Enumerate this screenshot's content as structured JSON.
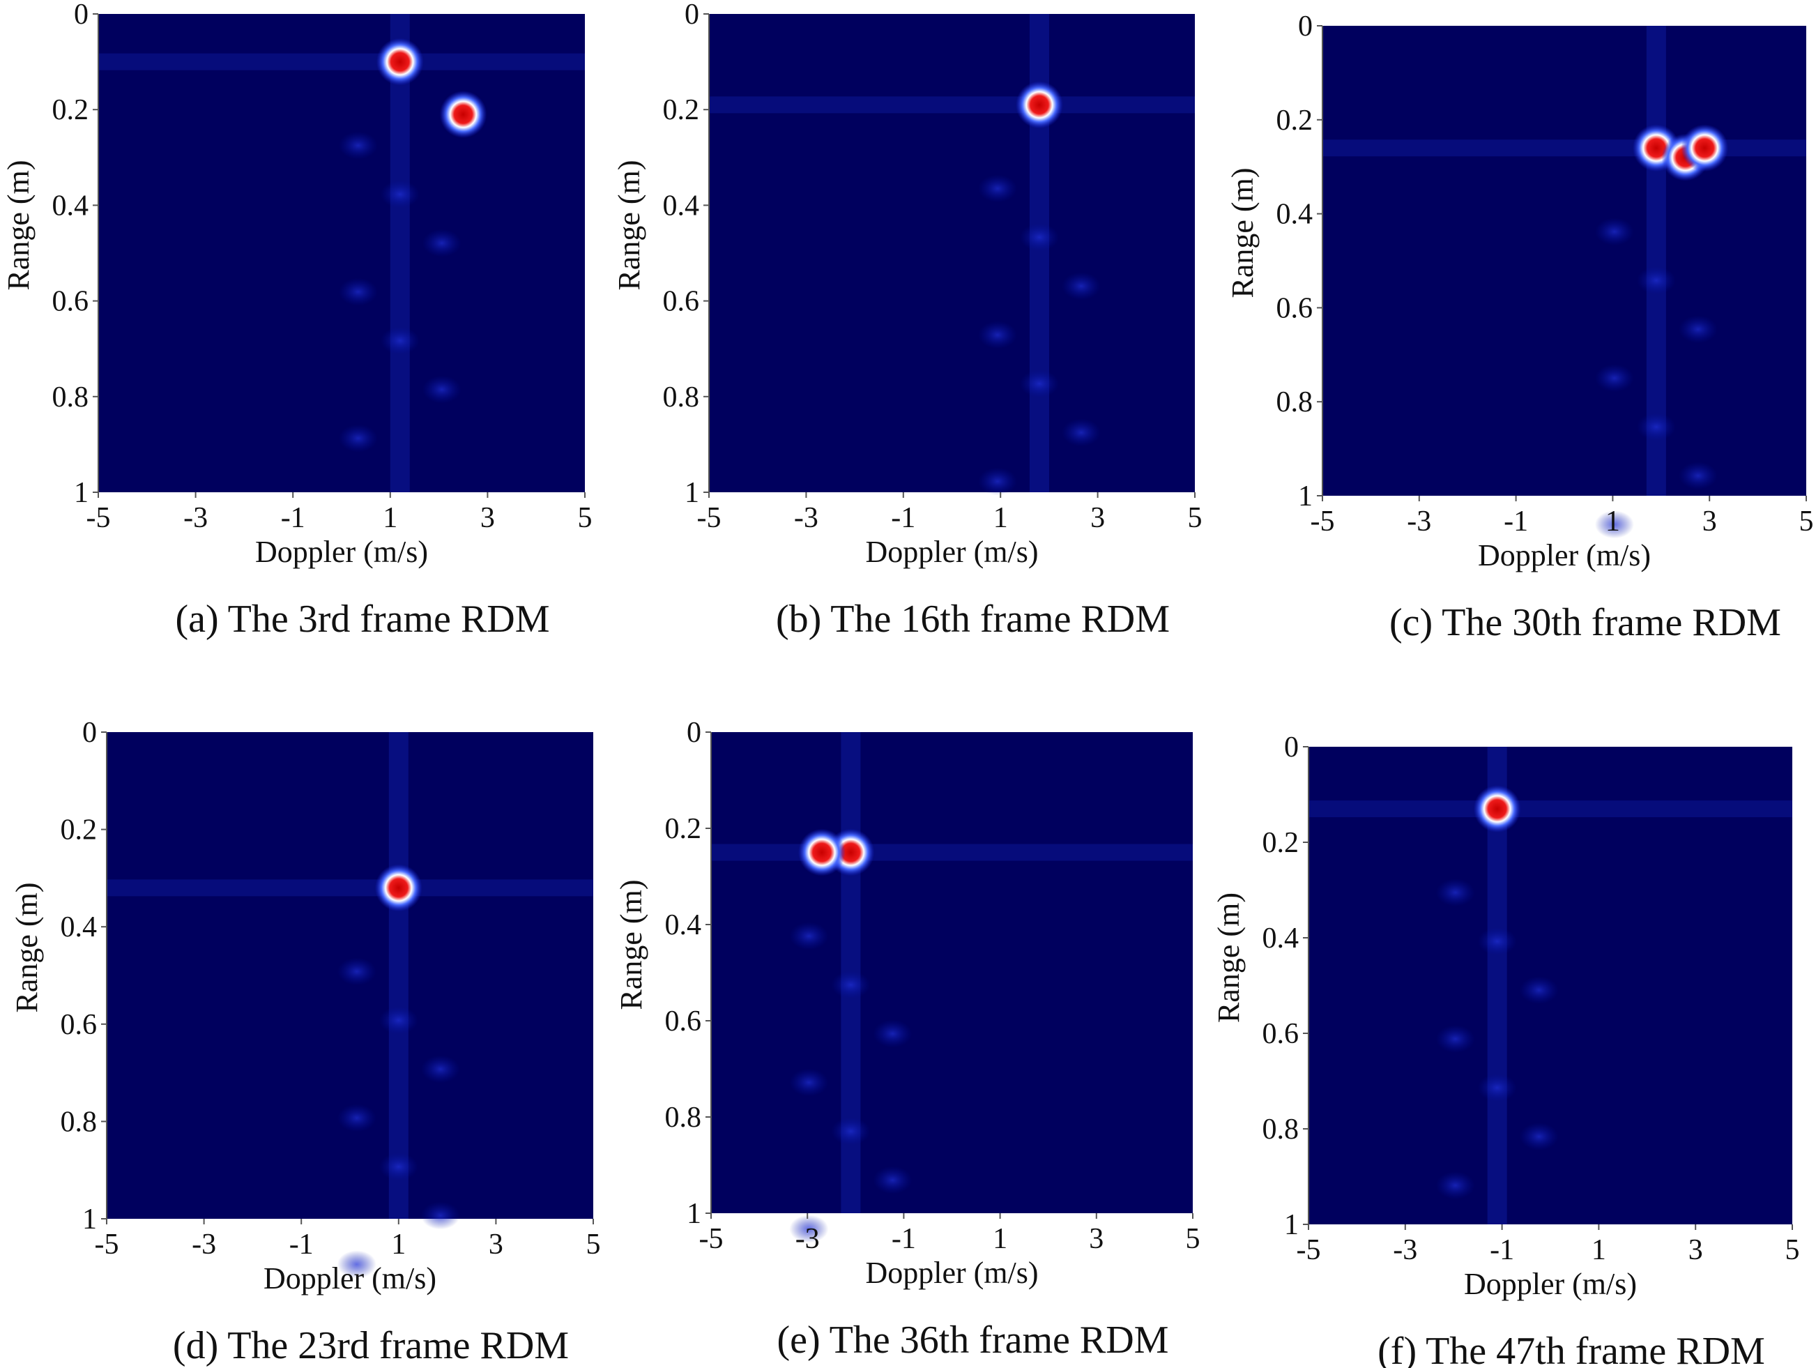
{
  "chart_data": [
    {
      "type": "heatmap",
      "caption": "(a) The 3rd frame RDM",
      "xlabel": "Doppler (m/s)",
      "ylabel": "Range (m)",
      "xlim": [
        -5,
        5
      ],
      "ylim": [
        0,
        1
      ],
      "y_reversed": true,
      "xticks": [
        -5,
        -3,
        -1,
        1,
        3,
        5
      ],
      "yticks": [
        0,
        0.2,
        0.4,
        0.6,
        0.8,
        1
      ],
      "background": "#00005e",
      "hotspots": {
        "x": [
          1.2,
          2.5
        ],
        "y": [
          0.1,
          0.21
        ]
      }
    },
    {
      "type": "heatmap",
      "caption": "(b) The 16th frame RDM",
      "xlabel": "Doppler (m/s)",
      "ylabel": "Range (m)",
      "xlim": [
        -5,
        5
      ],
      "ylim": [
        0,
        1
      ],
      "y_reversed": true,
      "xticks": [
        -5,
        -3,
        -1,
        1,
        3,
        5
      ],
      "yticks": [
        0,
        0.2,
        0.4,
        0.6,
        0.8,
        1
      ],
      "background": "#00005e",
      "hotspots": {
        "x": [
          1.8
        ],
        "y": [
          0.19
        ]
      }
    },
    {
      "type": "heatmap",
      "caption": "(c) The 30th frame RDM",
      "xlabel": "Doppler (m/s)",
      "ylabel": "Range (m)",
      "xlim": [
        -5,
        5
      ],
      "ylim": [
        0,
        1
      ],
      "y_reversed": true,
      "xticks": [
        -5,
        -3,
        -1,
        1,
        3,
        5
      ],
      "yticks": [
        0,
        0.2,
        0.4,
        0.6,
        0.8,
        1
      ],
      "background": "#00005e",
      "hotspots": {
        "x": [
          1.9,
          2.5,
          2.9
        ],
        "y": [
          0.26,
          0.28,
          0.26
        ]
      }
    },
    {
      "type": "heatmap",
      "caption": "(d) The 23rd frame RDM",
      "xlabel": "Doppler (m/s)",
      "ylabel": "Range (m)",
      "xlim": [
        -5,
        5
      ],
      "ylim": [
        0,
        1
      ],
      "y_reversed": true,
      "xticks": [
        -5,
        -3,
        -1,
        1,
        3,
        5
      ],
      "yticks": [
        0,
        0.2,
        0.4,
        0.6,
        0.8,
        1
      ],
      "background": "#00005e",
      "hotspots": {
        "x": [
          1.0
        ],
        "y": [
          0.32
        ]
      }
    },
    {
      "type": "heatmap",
      "caption": "(e) The 36th frame RDM",
      "xlabel": "Doppler (m/s)",
      "ylabel": "Range (m)",
      "xlim": [
        -5,
        5
      ],
      "ylim": [
        0,
        1
      ],
      "y_reversed": true,
      "xticks": [
        -5,
        -3,
        -1,
        1,
        3,
        5
      ],
      "yticks": [
        0,
        0.2,
        0.4,
        0.6,
        0.8,
        1
      ],
      "background": "#00005e",
      "hotspots": {
        "x": [
          -2.1,
          -2.7
        ],
        "y": [
          0.25,
          0.25
        ]
      }
    },
    {
      "type": "heatmap",
      "caption": "(f) The 47th frame RDM",
      "xlabel": "Doppler (m/s)",
      "ylabel": "Range (m)",
      "xlim": [
        -5,
        5
      ],
      "ylim": [
        0,
        1
      ],
      "y_reversed": true,
      "xticks": [
        -5,
        -3,
        -1,
        1,
        3,
        5
      ],
      "yticks": [
        0,
        0.2,
        0.4,
        0.6,
        0.8,
        1
      ],
      "background": "#00005e",
      "hotspots": {
        "x": [
          -1.1
        ],
        "y": [
          0.13
        ]
      }
    }
  ]
}
